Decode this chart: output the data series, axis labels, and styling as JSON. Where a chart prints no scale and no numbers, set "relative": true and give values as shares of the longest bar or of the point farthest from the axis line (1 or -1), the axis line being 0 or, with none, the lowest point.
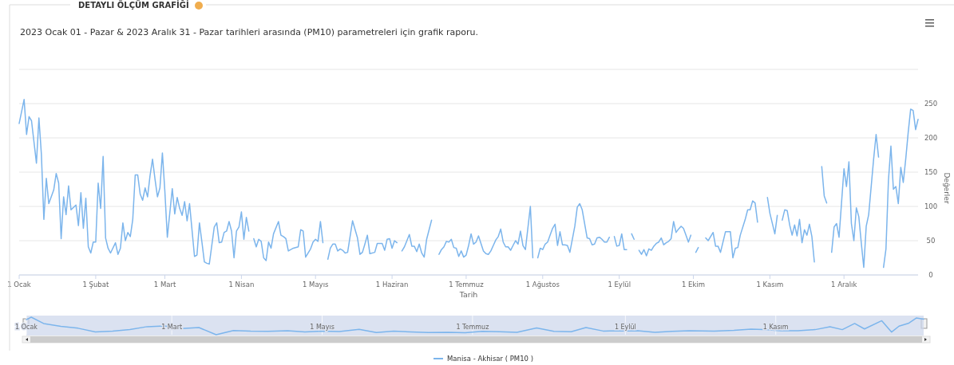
{
  "chart_data": [
    {
      "type": "line",
      "title": "DETAYLI ÖLÇÜM GRAFİĞİ",
      "subtitle": "2023 Ocak 01 - Pazar & 2023 Aralık 31 - Pazar tarihleri arasında (PM10) parametreleri için grafik raporu.",
      "xlabel": "Tarih",
      "ylabel": "Değerler",
      "grid": "y",
      "legend": "bottom",
      "xlim": [
        "2023-01-01",
        "2023-12-31"
      ],
      "xticks": [
        {
          "value": "2023-01-01",
          "label": "1 Ocak"
        },
        {
          "value": "2023-02-01",
          "label": "1 Şubat"
        },
        {
          "value": "2023-03-01",
          "label": "1 Mart"
        },
        {
          "value": "2023-04-01",
          "label": "1 Nisan"
        },
        {
          "value": "2023-05-01",
          "label": "1 Mayıs"
        },
        {
          "value": "2023-06-01",
          "label": "1 Haziran"
        },
        {
          "value": "2023-07-01",
          "label": "1 Temmuz"
        },
        {
          "value": "2023-08-01",
          "label": "1 Ağustos"
        },
        {
          "value": "2023-09-01",
          "label": "1 Eylül"
        },
        {
          "value": "2023-10-01",
          "label": "1 Ekim"
        },
        {
          "value": "2023-11-01",
          "label": "1 Kasım"
        },
        {
          "value": "2023-12-01",
          "label": "1 Aralık"
        }
      ],
      "ylim": [
        0,
        300
      ],
      "yticks": [
        0,
        50,
        100,
        150,
        200,
        250,
        {
          "value": 300,
          "label": null
        }
      ],
      "series": [
        {
          "name": "Manisa - Akhisar ( PM10 )",
          "color": "#7cb5ec",
          "x": [
            "2023-01-01",
            "2023-01-03",
            "2023-01-04",
            "2023-01-05",
            "2023-01-06",
            "2023-01-08",
            "2023-01-09",
            "2023-01-10",
            "2023-01-11",
            "2023-01-12",
            "2023-01-13",
            "2023-01-15",
            "2023-01-16",
            "2023-01-17",
            "2023-01-18",
            "2023-01-19",
            "2023-01-20",
            "2023-01-21",
            "2023-01-22",
            "2023-01-24",
            "2023-01-25",
            "2023-01-26",
            "2023-01-27",
            "2023-01-28",
            "2023-01-29",
            "2023-01-30",
            "2023-01-31",
            "2023-02-01",
            "2023-02-02",
            "2023-02-03",
            "2023-02-04",
            "2023-02-05",
            "2023-02-06",
            "2023-02-07",
            "2023-02-09",
            "2023-02-10",
            "2023-02-11",
            "2023-02-12",
            "2023-02-13",
            "2023-02-14",
            "2023-02-15",
            "2023-02-16",
            "2023-02-17",
            "2023-02-18",
            "2023-02-19",
            "2023-02-20",
            "2023-02-21",
            "2023-02-22",
            "2023-02-23",
            "2023-02-24",
            "2023-02-25",
            "2023-02-26",
            "2023-02-27",
            "2023-02-28",
            "2023-03-01",
            "2023-03-02",
            "2023-03-04",
            "2023-03-05",
            "2023-03-06",
            "2023-03-07",
            "2023-03-08",
            "2023-03-09",
            "2023-03-10",
            "2023-03-11",
            "2023-03-13",
            "2023-03-14",
            "2023-03-15",
            "2023-03-16",
            "2023-03-17",
            "2023-03-18",
            "2023-03-19",
            "2023-03-21",
            "2023-03-22",
            "2023-03-23",
            "2023-03-24",
            "2023-03-25",
            "2023-03-26",
            "2023-03-27",
            "2023-03-28",
            "2023-03-29",
            "2023-03-30",
            "2023-03-31",
            "2023-04-01",
            "2023-04-02",
            "2023-04-03",
            "2023-04-04",
            "2023-04-05",
            "2023-04-06",
            "2023-04-07",
            "2023-04-08",
            "2023-04-09",
            "2023-04-10",
            "2023-04-11",
            "2023-04-12",
            "2023-04-13",
            "2023-04-14",
            "2023-04-16",
            "2023-04-17",
            "2023-04-18",
            "2023-04-19",
            "2023-04-20",
            "2023-04-22",
            "2023-04-24",
            "2023-04-25",
            "2023-04-26",
            "2023-04-27",
            "2023-04-29",
            "2023-04-30",
            "2023-05-01",
            "2023-05-02",
            "2023-05-03",
            "2023-05-04",
            "2023-05-05",
            "2023-05-06",
            "2023-05-07",
            "2023-05-08",
            "2023-05-09",
            "2023-05-10",
            "2023-05-11",
            "2023-05-12",
            "2023-05-13",
            "2023-05-14",
            "2023-05-16",
            "2023-05-18",
            "2023-05-19",
            "2023-05-20",
            "2023-05-21",
            "2023-05-22",
            "2023-05-23",
            "2023-05-25",
            "2023-05-26",
            "2023-05-28",
            "2023-05-29",
            "2023-05-30",
            "2023-05-31",
            "2023-06-01",
            "2023-06-02",
            "2023-06-03",
            "2023-06-04",
            "2023-06-05",
            "2023-06-06",
            "2023-06-08",
            "2023-06-09",
            "2023-06-10",
            "2023-06-11",
            "2023-06-12",
            "2023-06-13",
            "2023-06-14",
            "2023-06-15",
            "2023-06-17",
            "2023-06-18",
            "2023-06-20",
            "2023-06-21",
            "2023-06-22",
            "2023-06-23",
            "2023-06-24",
            "2023-06-25",
            "2023-06-26",
            "2023-06-27",
            "2023-06-28",
            "2023-06-29",
            "2023-06-30",
            "2023-07-01",
            "2023-07-02",
            "2023-07-03",
            "2023-07-04",
            "2023-07-05",
            "2023-07-06",
            "2023-07-08",
            "2023-07-09",
            "2023-07-10",
            "2023-07-11",
            "2023-07-12",
            "2023-07-13",
            "2023-07-14",
            "2023-07-15",
            "2023-07-16",
            "2023-07-17",
            "2023-07-18",
            "2023-07-19",
            "2023-07-20",
            "2023-07-21",
            "2023-07-22",
            "2023-07-23",
            "2023-07-24",
            "2023-07-25",
            "2023-07-27",
            "2023-07-28",
            "2023-07-29",
            "2023-07-30",
            "2023-07-31",
            "2023-08-01",
            "2023-08-02",
            "2023-08-03",
            "2023-08-04",
            "2023-08-05",
            "2023-08-06",
            "2023-08-07",
            "2023-08-08",
            "2023-08-09",
            "2023-08-10",
            "2023-08-11",
            "2023-08-12",
            "2023-08-14",
            "2023-08-15",
            "2023-08-16",
            "2023-08-17",
            "2023-08-19",
            "2023-08-20",
            "2023-08-21",
            "2023-08-22",
            "2023-08-23",
            "2023-08-24",
            "2023-08-25",
            "2023-08-26",
            "2023-08-27",
            "2023-08-28",
            "2023-08-29",
            "2023-08-30",
            "2023-08-31",
            "2023-09-01",
            "2023-09-02",
            "2023-09-03",
            "2023-09-04",
            "2023-09-05",
            "2023-09-06",
            "2023-09-07",
            "2023-09-08",
            "2023-09-09",
            "2023-09-10",
            "2023-09-11",
            "2023-09-12",
            "2023-09-13",
            "2023-09-14",
            "2023-09-15",
            "2023-09-16",
            "2023-09-17",
            "2023-09-18",
            "2023-09-19",
            "2023-09-20",
            "2023-09-21",
            "2023-09-22",
            "2023-09-23",
            "2023-09-24",
            "2023-09-25",
            "2023-09-26",
            "2023-09-27",
            "2023-09-28",
            "2023-09-29",
            "2023-09-30",
            "2023-10-01",
            "2023-10-02",
            "2023-10-03",
            "2023-10-04",
            "2023-10-06",
            "2023-10-07",
            "2023-10-09",
            "2023-10-10",
            "2023-10-11",
            "2023-10-12",
            "2023-10-14",
            "2023-10-15",
            "2023-10-16",
            "2023-10-17",
            "2023-10-18",
            "2023-10-19",
            "2023-10-20",
            "2023-10-22",
            "2023-10-23",
            "2023-10-24",
            "2023-10-25",
            "2023-10-26",
            "2023-10-27",
            "2023-10-28",
            "2023-10-31",
            "2023-11-01",
            "2023-11-03",
            "2023-11-04",
            "2023-11-05",
            "2023-11-06",
            "2023-11-07",
            "2023-11-08",
            "2023-11-09",
            "2023-11-10",
            "2023-11-11",
            "2023-11-12",
            "2023-11-13",
            "2023-11-14",
            "2023-11-15",
            "2023-11-16",
            "2023-11-17",
            "2023-11-18",
            "2023-11-19",
            "2023-11-20",
            "2023-11-22",
            "2023-11-23",
            "2023-11-24",
            "2023-11-25",
            "2023-11-26",
            "2023-11-27",
            "2023-11-28",
            "2023-11-29",
            "2023-12-01",
            "2023-12-02",
            "2023-12-03",
            "2023-12-04",
            "2023-12-05",
            "2023-12-06",
            "2023-12-07",
            "2023-12-08",
            "2023-12-09",
            "2023-12-10",
            "2023-12-11",
            "2023-12-13",
            "2023-12-14",
            "2023-12-15",
            "2023-12-16",
            "2023-12-17",
            "2023-12-18",
            "2023-12-19",
            "2023-12-20",
            "2023-12-21",
            "2023-12-22",
            "2023-12-23",
            "2023-12-24",
            "2023-12-25",
            "2023-12-26",
            "2023-12-27",
            "2023-12-28",
            "2023-12-29",
            "2023-12-30",
            "2023-12-31"
          ],
          "values": [
            221,
            256,
            205,
            231,
            225,
            163,
            229,
            176,
            81,
            141,
            104,
            124,
            148,
            134,
            53,
            114,
            88,
            130,
            95,
            102,
            72,
            120,
            68,
            112,
            41,
            32,
            48,
            48,
            134,
            97,
            173,
            54,
            39,
            32,
            47,
            30,
            39,
            76,
            50,
            62,
            56,
            81,
            146,
            146,
            118,
            109,
            127,
            114,
            145,
            169,
            140,
            114,
            127,
            178,
            122,
            55,
            126,
            89,
            113,
            97,
            87,
            107,
            79,
            104,
            27,
            29,
            76,
            48,
            19,
            17,
            16,
            70,
            76,
            47,
            48,
            62,
            64,
            78,
            64,
            25,
            64,
            70,
            92,
            52,
            84,
            64,
            null,
            53,
            41,
            52,
            49,
            25,
            21,
            48,
            39,
            60,
            78,
            58,
            56,
            53,
            35,
            39,
            41,
            66,
            64,
            26,
            38,
            48,
            52,
            49,
            78,
            47,
            null,
            23,
            39,
            45,
            45,
            35,
            38,
            36,
            32,
            33,
            79,
            54,
            30,
            33,
            45,
            58,
            31,
            33,
            46,
            46,
            36,
            52,
            53,
            39,
            50,
            47,
            null,
            35,
            41,
            59,
            42,
            42,
            34,
            45,
            32,
            26,
            52,
            80,
            null,
            30,
            37,
            41,
            49,
            48,
            52,
            40,
            39,
            27,
            35,
            26,
            29,
            43,
            60,
            45,
            48,
            57,
            35,
            31,
            30,
            35,
            43,
            51,
            56,
            67,
            48,
            41,
            41,
            36,
            43,
            50,
            45,
            64,
            43,
            37,
            100,
            25,
            null,
            25,
            39,
            37,
            45,
            48,
            58,
            68,
            74,
            43,
            63,
            44,
            44,
            43,
            33,
            71,
            99,
            104,
            95,
            54,
            53,
            44,
            45,
            54,
            55,
            52,
            48,
            48,
            55,
            null,
            56,
            42,
            43,
            60,
            37,
            37,
            null,
            60,
            52,
            null,
            36,
            30,
            37,
            28,
            38,
            36,
            42,
            46,
            48,
            54,
            44,
            47,
            49,
            53,
            78,
            62,
            67,
            71,
            68,
            58,
            48,
            58,
            null,
            33,
            40,
            null,
            54,
            50,
            62,
            42,
            42,
            33,
            63,
            63,
            63,
            25,
            39,
            40,
            58,
            81,
            95,
            95,
            108,
            105,
            77,
            null,
            113,
            90,
            60,
            87,
            null,
            80,
            95,
            94,
            73,
            58,
            73,
            57,
            81,
            47,
            66,
            58,
            74,
            56,
            19,
            null,
            158,
            115,
            105,
            null,
            33,
            70,
            75,
            55,
            155,
            129,
            165,
            75,
            50,
            98,
            85,
            47,
            11,
            71,
            88,
            169,
            205,
            172,
            null,
            11,
            38,
            138,
            188,
            125,
            129,
            104,
            157,
            135,
            169,
            208,
            242,
            240,
            212,
            227
          ]
        }
      ]
    },
    {
      "type": "line",
      "relative": true,
      "grid": "x",
      "tick_labels": "x",
      "xlim": [
        "2023-01-01",
        "2023-12-31"
      ],
      "xticks": [
        {
          "value": "2023-01-01",
          "label": "1 Ocak"
        },
        {
          "value": "2023-03-01",
          "label": "1 Mart"
        },
        {
          "value": "2023-05-01",
          "label": "1 Mayıs"
        },
        {
          "value": "2023-07-01",
          "label": "1 Temmuz"
        },
        {
          "value": "2023-09-01",
          "label": "1 Eylül"
        },
        {
          "value": "2023-11-01",
          "label": "1 Kasım"
        }
      ],
      "series": [
        {
          "color": "#7cb5ec",
          "x": [
            "2023-01-01",
            "2023-01-03",
            "2023-01-08",
            "2023-01-15",
            "2023-01-22",
            "2023-01-29",
            "2023-02-05",
            "2023-02-12",
            "2023-02-19",
            "2023-02-26",
            "2023-03-05",
            "2023-03-12",
            "2023-03-19",
            "2023-03-26",
            "2023-04-02",
            "2023-04-09",
            "2023-04-17",
            "2023-04-24",
            "2023-05-01",
            "2023-05-08",
            "2023-05-16",
            "2023-05-23",
            "2023-05-30",
            "2023-06-06",
            "2023-06-13",
            "2023-06-21",
            "2023-06-28",
            "2023-07-05",
            "2023-07-12",
            "2023-07-19",
            "2023-07-27",
            "2023-08-03",
            "2023-08-10",
            "2023-08-16",
            "2023-08-23",
            "2023-08-30",
            "2023-09-06",
            "2023-09-13",
            "2023-09-20",
            "2023-09-27",
            "2023-10-07",
            "2023-10-15",
            "2023-10-22",
            "2023-10-27",
            "2023-11-03",
            "2023-11-10",
            "2023-11-17",
            "2023-11-23",
            "2023-11-28",
            "2023-12-03",
            "2023-12-07",
            "2023-12-14",
            "2023-12-18",
            "2023-12-21",
            "2023-12-25",
            "2023-12-28",
            "2023-12-31"
          ],
          "values": [
            0.86,
            1,
            0.64,
            0.48,
            0.37,
            0.16,
            0.21,
            0.3,
            0.46,
            0.5,
            0.35,
            0.41,
            0,
            0.24,
            0.2,
            0.19,
            0.23,
            0.16,
            0.2,
            0.18,
            0.31,
            0.12,
            0.2,
            0.16,
            0.13,
            0.14,
            0.11,
            0.19,
            0.17,
            0.14,
            0.39,
            0.19,
            0.17,
            0.41,
            0.21,
            0.22,
            0.23,
            0.14,
            0.19,
            0.23,
            0.2,
            0.25,
            0.32,
            0.3,
            0.23,
            0.23,
            0.29,
            0.45,
            0.29,
            0.64,
            0.33,
            0.8,
            0.15,
            0.49,
            0.66,
            0.95,
            0.89
          ]
        }
      ]
    }
  ]
}
